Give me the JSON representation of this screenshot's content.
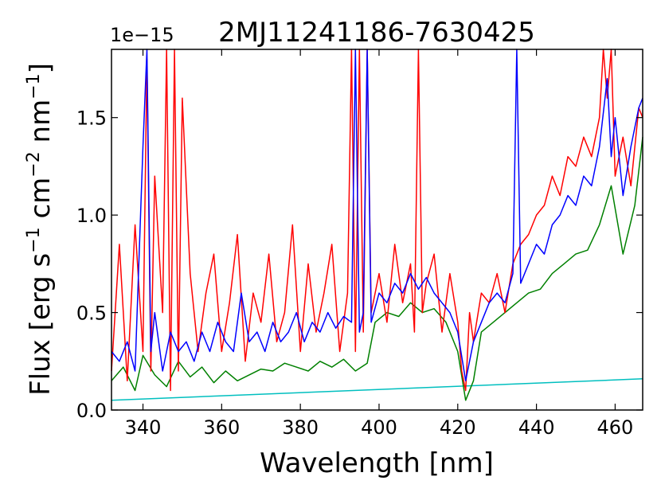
{
  "chart_data": {
    "type": "line",
    "title": "2MJ11241186-7630425",
    "xlabel": "Wavelength [nm]",
    "ylabel_text": "Flux [erg s",
    "ylabel_sup1": "−1",
    "ylabel_mid": " cm",
    "ylabel_sup2": "−2",
    "ylabel_tail": " nm",
    "ylabel_sup3": "−1",
    "ylabel_end": "]",
    "y_offset_label": "1e−15",
    "xlim": [
      332,
      467
    ],
    "ylim": [
      0.0,
      1.85
    ],
    "xticks": [
      340,
      360,
      380,
      400,
      420,
      440,
      460
    ],
    "xtick_labels": [
      "340",
      "360",
      "380",
      "400",
      "420",
      "440",
      "460"
    ],
    "yticks": [
      0.0,
      0.5,
      1.0,
      1.5
    ],
    "ytick_labels": [
      "0.0",
      "0.5",
      "1.0",
      "1.5"
    ],
    "grid": false,
    "colors": {
      "red": "#ff0000",
      "green": "#008000",
      "blue": "#0000ff",
      "cyan": "#00bfbf"
    },
    "series": [
      {
        "color": "cyan",
        "x": [
          332,
          467
        ],
        "y": [
          0.05,
          0.16
        ]
      },
      {
        "color": "green",
        "x": [
          332,
          335,
          338,
          340,
          343,
          346,
          349,
          352,
          355,
          358,
          361,
          364,
          367,
          370,
          373,
          376,
          379,
          382,
          385,
          388,
          391,
          394,
          397,
          399,
          402,
          405,
          408,
          411,
          414,
          417,
          420,
          422,
          424,
          426,
          429,
          432,
          435,
          438,
          441,
          444,
          447,
          450,
          453,
          456,
          459,
          462,
          465,
          467
        ],
        "y": [
          0.15,
          0.22,
          0.1,
          0.28,
          0.18,
          0.12,
          0.25,
          0.17,
          0.22,
          0.14,
          0.2,
          0.15,
          0.18,
          0.21,
          0.2,
          0.24,
          0.22,
          0.2,
          0.25,
          0.22,
          0.26,
          0.2,
          0.24,
          0.45,
          0.5,
          0.48,
          0.55,
          0.5,
          0.52,
          0.45,
          0.3,
          0.05,
          0.15,
          0.4,
          0.45,
          0.5,
          0.55,
          0.6,
          0.62,
          0.7,
          0.75,
          0.8,
          0.82,
          0.95,
          1.15,
          0.8,
          1.05,
          1.4
        ]
      },
      {
        "color": "red",
        "x": [
          332,
          334,
          336,
          338,
          340,
          341,
          342,
          343,
          345,
          346,
          347,
          348,
          349,
          350,
          352,
          354,
          356,
          358,
          360,
          362,
          364,
          366,
          368,
          370,
          372,
          374,
          376,
          378,
          380,
          382,
          384,
          386,
          388,
          390,
          392,
          393,
          394,
          395,
          396,
          397,
          398,
          400,
          402,
          404,
          406,
          408,
          409,
          410,
          411,
          412,
          414,
          416,
          418,
          420,
          421,
          422,
          423,
          424,
          426,
          428,
          430,
          432,
          434,
          436,
          438,
          440,
          442,
          444,
          446,
          448,
          450,
          452,
          454,
          456,
          457,
          458,
          459,
          460,
          462,
          464,
          466,
          467
        ],
        "y": [
          0.2,
          0.85,
          0.15,
          0.95,
          0.3,
          1.8,
          0.2,
          1.2,
          0.5,
          1.9,
          0.1,
          1.85,
          0.2,
          1.6,
          0.7,
          0.3,
          0.6,
          0.8,
          0.3,
          0.55,
          0.9,
          0.25,
          0.6,
          0.45,
          0.8,
          0.35,
          0.5,
          0.95,
          0.3,
          0.75,
          0.4,
          0.6,
          0.85,
          0.3,
          0.6,
          1.85,
          0.3,
          1.85,
          0.4,
          1.85,
          0.5,
          0.7,
          0.45,
          0.85,
          0.55,
          0.75,
          0.4,
          1.85,
          0.5,
          0.65,
          0.8,
          0.4,
          0.7,
          0.45,
          0.2,
          0.1,
          0.5,
          0.35,
          0.6,
          0.55,
          0.7,
          0.5,
          0.75,
          0.85,
          0.9,
          1.0,
          1.05,
          1.2,
          1.1,
          1.3,
          1.25,
          1.4,
          1.3,
          1.5,
          1.85,
          1.6,
          1.85,
          1.2,
          1.4,
          1.15,
          1.55,
          1.5
        ]
      },
      {
        "color": "blue",
        "x": [
          332,
          334,
          336,
          338,
          340,
          341,
          342,
          343,
          345,
          347,
          349,
          351,
          353,
          355,
          357,
          359,
          361,
          363,
          365,
          367,
          369,
          371,
          373,
          375,
          377,
          379,
          381,
          383,
          385,
          387,
          389,
          391,
          393,
          394,
          395,
          396,
          397,
          398,
          400,
          402,
          404,
          406,
          408,
          410,
          412,
          414,
          416,
          418,
          420,
          422,
          424,
          426,
          428,
          430,
          432,
          434,
          435,
          436,
          438,
          440,
          442,
          444,
          446,
          448,
          450,
          452,
          454,
          456,
          458,
          459,
          460,
          462,
          464,
          466,
          467
        ],
        "y": [
          0.3,
          0.25,
          0.35,
          0.2,
          1.35,
          1.85,
          0.3,
          0.5,
          0.2,
          0.4,
          0.3,
          0.35,
          0.25,
          0.4,
          0.3,
          0.45,
          0.35,
          0.3,
          0.6,
          0.35,
          0.4,
          0.3,
          0.45,
          0.35,
          0.4,
          0.5,
          0.35,
          0.45,
          0.4,
          0.5,
          0.42,
          0.48,
          0.45,
          1.85,
          0.4,
          0.5,
          1.85,
          0.45,
          0.6,
          0.55,
          0.65,
          0.6,
          0.7,
          0.62,
          0.68,
          0.6,
          0.55,
          0.5,
          0.4,
          0.15,
          0.35,
          0.45,
          0.55,
          0.6,
          0.55,
          0.7,
          1.85,
          0.65,
          0.75,
          0.85,
          0.8,
          0.95,
          1.0,
          1.1,
          1.05,
          1.2,
          1.15,
          1.35,
          1.7,
          1.3,
          1.5,
          1.1,
          1.35,
          1.55,
          1.6
        ]
      }
    ]
  }
}
